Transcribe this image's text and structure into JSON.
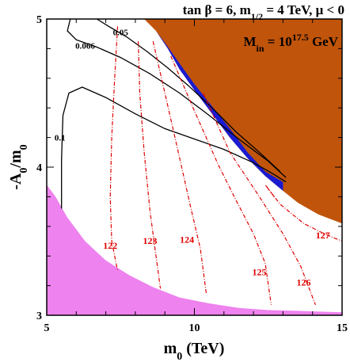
{
  "chart_data": {
    "type": "contour",
    "title": "tan β = 6, m1/2 = 4 TeV, μ < 0",
    "title_parts": {
      "prefix": "tan β = 6, m",
      "sub": "1/2",
      "suffix": " = 4 TeV, μ < 0"
    },
    "annotation": {
      "prefix": "M",
      "sub": "in",
      "mid": " = 10",
      "sup": "17.5",
      "suffix": " GeV"
    },
    "xlabel": "m0 (TeV)",
    "xlabel_parts": {
      "base": "m",
      "sub": "0",
      "suffix": " (TeV)"
    },
    "ylabel": "-A0/m0",
    "ylabel_parts": {
      "a": "-A",
      "sub1": "0",
      "b": "/m",
      "sub2": "0"
    },
    "xlim": [
      5,
      15
    ],
    "ylim": [
      3,
      5
    ],
    "xticks": [
      5,
      10,
      15
    ],
    "yticks": [
      3,
      4,
      5
    ],
    "colors": {
      "excluded_region": "#c0540a",
      "dm_strip": "#1a1ad0",
      "lower_region": "#ee82ee",
      "higgs_contours": "#e00000",
      "omega_contours": "#000000"
    },
    "regions": [
      {
        "name": "brown-excluded",
        "color": "#c0540a",
        "points": [
          [
            8.3,
            5.0
          ],
          [
            15.0,
            5.0
          ],
          [
            15.0,
            3.62
          ],
          [
            14.2,
            3.68
          ],
          [
            13.5,
            3.76
          ],
          [
            13.0,
            3.84
          ],
          [
            12.4,
            3.94
          ],
          [
            11.8,
            4.06
          ],
          [
            11.2,
            4.2
          ],
          [
            10.6,
            4.36
          ],
          [
            10.0,
            4.52
          ],
          [
            9.5,
            4.66
          ],
          [
            9.1,
            4.8
          ],
          [
            8.7,
            4.92
          ]
        ]
      },
      {
        "name": "blue-strip",
        "color": "#1a1ad0",
        "points": [
          [
            8.7,
            4.92
          ],
          [
            9.1,
            4.8
          ],
          [
            9.5,
            4.66
          ],
          [
            10.0,
            4.52
          ],
          [
            10.6,
            4.36
          ],
          [
            11.2,
            4.2
          ],
          [
            11.8,
            4.06
          ],
          [
            12.4,
            3.94
          ],
          [
            13.0,
            3.84
          ],
          [
            13.0,
            3.9
          ],
          [
            12.4,
            3.97
          ],
          [
            11.8,
            4.1
          ],
          [
            11.2,
            4.26
          ],
          [
            10.6,
            4.41
          ],
          [
            10.0,
            4.56
          ],
          [
            9.5,
            4.7
          ],
          [
            9.0,
            4.84
          ]
        ]
      },
      {
        "name": "pink-lower",
        "color": "#ee82ee",
        "points": [
          [
            5.0,
            3.88
          ],
          [
            5.3,
            3.8
          ],
          [
            5.7,
            3.66
          ],
          [
            6.3,
            3.5
          ],
          [
            7.0,
            3.37
          ],
          [
            7.8,
            3.27
          ],
          [
            8.6,
            3.19
          ],
          [
            9.5,
            3.12
          ],
          [
            10.5,
            3.08
          ],
          [
            11.5,
            3.05
          ],
          [
            12.5,
            3.035
          ],
          [
            13.5,
            3.03
          ],
          [
            15.0,
            3.02
          ],
          [
            15.0,
            3.0
          ],
          [
            5.0,
            3.0
          ]
        ]
      }
    ],
    "omega_contours": [
      {
        "label": "0.05",
        "label_at": [
          7.5,
          4.89
        ],
        "points": [
          [
            6.7,
            5.0
          ],
          [
            7.1,
            4.95
          ],
          [
            7.7,
            4.88
          ],
          [
            8.4,
            4.78
          ],
          [
            9.1,
            4.67
          ],
          [
            9.8,
            4.55
          ],
          [
            10.6,
            4.4
          ],
          [
            11.4,
            4.24
          ],
          [
            12.2,
            4.1
          ],
          [
            12.9,
            3.97
          ]
        ]
      },
      {
        "label": "0.066",
        "label_at": [
          6.3,
          4.8
        ],
        "points": [
          [
            5.8,
            5.0
          ],
          [
            5.7,
            4.92
          ],
          [
            6.0,
            4.86
          ],
          [
            6.7,
            4.81
          ],
          [
            7.5,
            4.74
          ],
          [
            8.5,
            4.63
          ],
          [
            9.5,
            4.5
          ],
          [
            10.5,
            4.35
          ],
          [
            11.5,
            4.19
          ],
          [
            12.5,
            4.04
          ],
          [
            13.1,
            3.93
          ]
        ]
      },
      {
        "label": "0.1",
        "label_at": [
          5.45,
          4.18
        ],
        "points": [
          [
            5.5,
            3.72
          ],
          [
            5.5,
            4.05
          ],
          [
            5.55,
            4.35
          ],
          [
            5.75,
            4.5
          ],
          [
            6.2,
            4.54
          ],
          [
            7.0,
            4.47
          ],
          [
            8.0,
            4.36
          ],
          [
            9.0,
            4.26
          ],
          [
            10.0,
            4.19
          ],
          [
            11.0,
            4.12
          ],
          [
            12.0,
            4.03
          ],
          [
            12.7,
            3.95
          ],
          [
            13.1,
            3.9
          ]
        ]
      }
    ],
    "higgs_contours": [
      {
        "label": "122",
        "label_at": [
          7.15,
          3.45
        ],
        "points": [
          [
            7.4,
            4.95
          ],
          [
            7.3,
            4.6
          ],
          [
            7.2,
            4.2
          ],
          [
            7.15,
            3.8
          ],
          [
            7.2,
            3.5
          ],
          [
            7.4,
            3.3
          ]
        ]
      },
      {
        "label": "123",
        "label_at": [
          8.5,
          3.48
        ],
        "points": [
          [
            8.1,
            4.85
          ],
          [
            8.15,
            4.5
          ],
          [
            8.3,
            4.1
          ],
          [
            8.5,
            3.7
          ],
          [
            8.7,
            3.4
          ],
          [
            8.85,
            3.18
          ]
        ]
      },
      {
        "label": "124",
        "label_at": [
          9.75,
          3.49
        ],
        "points": [
          [
            8.6,
            4.85
          ],
          [
            9.0,
            4.5
          ],
          [
            9.4,
            4.15
          ],
          [
            9.85,
            3.75
          ],
          [
            10.2,
            3.45
          ],
          [
            10.4,
            3.15
          ]
        ]
      },
      {
        "label": "125",
        "label_at": [
          12.2,
          3.27
        ],
        "points": [
          [
            9.2,
            4.75
          ],
          [
            10.0,
            4.38
          ],
          [
            10.8,
            4.02
          ],
          [
            11.4,
            3.78
          ],
          [
            12.0,
            3.55
          ],
          [
            12.4,
            3.35
          ],
          [
            12.6,
            3.07
          ]
        ]
      },
      {
        "label": "126",
        "label_at": [
          13.7,
          3.2
        ],
        "points": [
          [
            10.3,
            4.5
          ],
          [
            11.2,
            4.1
          ],
          [
            12.2,
            3.8
          ],
          [
            13.0,
            3.55
          ],
          [
            13.6,
            3.33
          ],
          [
            14.1,
            3.07
          ]
        ]
      },
      {
        "label": "127",
        "label_at": [
          14.35,
          3.52
        ],
        "points": [
          [
            12.7,
            3.8
          ],
          [
            12.4,
            3.88
          ],
          [
            12.9,
            3.75
          ],
          [
            13.7,
            3.62
          ],
          [
            14.4,
            3.55
          ],
          [
            15.0,
            3.5
          ]
        ]
      }
    ]
  }
}
